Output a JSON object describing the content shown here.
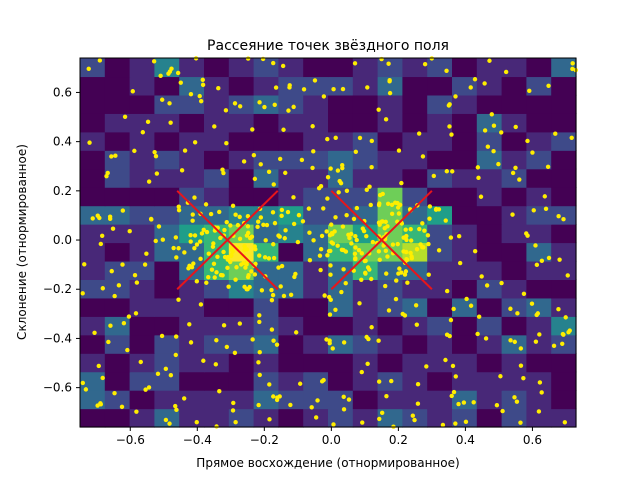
{
  "chart_data": {
    "type": "scatter",
    "title": "Рассеяние точек звёздного поля",
    "xlabel": "Прямое восхождение (отнормированное)",
    "ylabel": "Склонение (отнормированное)",
    "xlim": [
      -0.75,
      0.73
    ],
    "ylim": [
      -0.76,
      0.74
    ],
    "x_ticks": [
      -0.6,
      -0.4,
      -0.2,
      0.0,
      0.2,
      0.4,
      0.6
    ],
    "x_tick_labels": [
      "−0.6",
      "−0.4",
      "−0.2",
      "0.0",
      "0.2",
      "0.4",
      "0.6"
    ],
    "y_ticks": [
      -0.6,
      -0.4,
      -0.2,
      0.0,
      0.2,
      0.4,
      0.6
    ],
    "y_tick_labels": [
      "−0.6",
      "−0.4",
      "−0.2",
      "0.0",
      "0.2",
      "0.4",
      "0.6"
    ],
    "grid": false,
    "legend": "none",
    "colors": {
      "points": "#ffee00",
      "markers": "#e8151b",
      "colormap": [
        "#440154",
        "#482878",
        "#3e4a89",
        "#31688e",
        "#26828e",
        "#1f9e89",
        "#35b779",
        "#6ece58",
        "#b5de2b",
        "#fde725"
      ]
    },
    "heatmap_background": {
      "colormap": "viridis",
      "bins_x": 20,
      "bins_y": 20,
      "note_source": "2D histogram of point density underlying the scatter"
    },
    "markers": [
      {
        "shape": "x",
        "center": [
          -0.31,
          0.0
        ],
        "half_width": 0.15,
        "half_height": 0.2
      },
      {
        "shape": "x",
        "center": [
          0.15,
          0.0
        ],
        "half_width": 0.15,
        "half_height": 0.2
      }
    ],
    "clusters": [
      {
        "center": [
          -0.28,
          -0.03
        ],
        "spread": [
          0.1,
          0.1
        ],
        "count": 110
      },
      {
        "center": [
          0.15,
          0.0
        ],
        "spread": [
          0.1,
          0.1
        ],
        "count": 110
      }
    ],
    "background_points": 420
  }
}
